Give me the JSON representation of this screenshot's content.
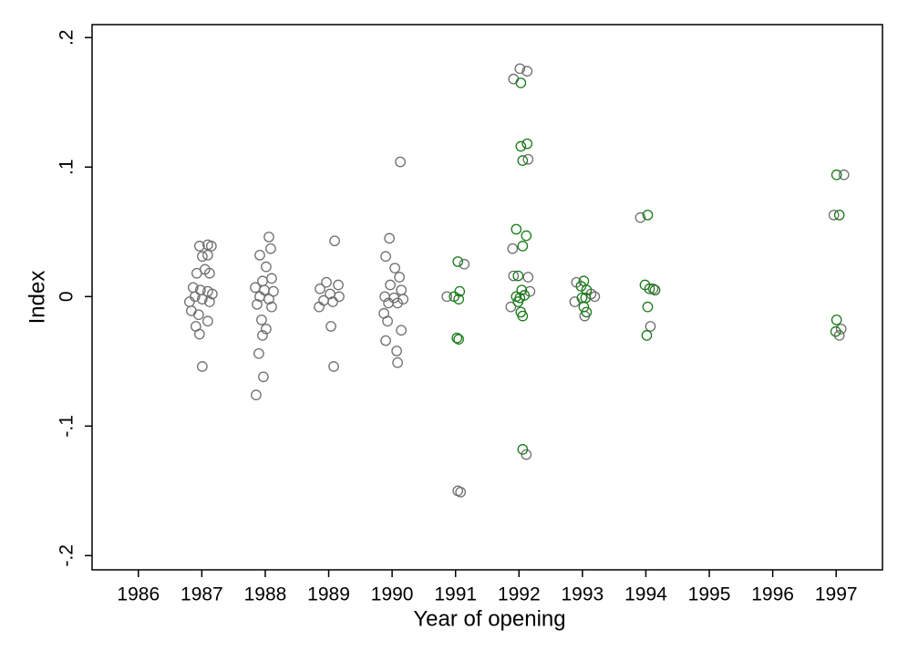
{
  "chart_data": {
    "type": "scatter",
    "x_label": "Year of opening",
    "y_label": "Index",
    "xlim": [
      1985.27,
      1997.73
    ],
    "ylim": [
      -0.211,
      0.21
    ],
    "xticks": [
      1986,
      1987,
      1988,
      1989,
      1990,
      1991,
      1992,
      1993,
      1994,
      1995,
      1996,
      1997
    ],
    "yticks": [
      {
        "value": -0.2,
        "label": "-.2"
      },
      {
        "value": -0.1,
        "label": "-.1"
      },
      0,
      {
        "value": 0.1,
        "label": ".1"
      },
      {
        "value": 0.2,
        "label": ".2"
      }
    ],
    "series": [
      {
        "color": "#6e6e6e",
        "x": [
          1986.964,
          1987.094,
          1987.151,
          1987.007,
          1987.094,
          1986.921,
          1987.05,
          1987.122,
          1986.863,
          1986.978,
          1987.094,
          1986.892,
          1987.007,
          1987.122,
          1986.835,
          1986.95,
          1987.094,
          1986.906,
          1986.964,
          1987.007,
          1987.165,
          1986.806,
          1988.058,
          1987.914,
          1988.086,
          1988.014,
          1987.957,
          1988.101,
          1987.842,
          1987.986,
          1988.129,
          1987.914,
          1988.058,
          1987.871,
          1988.101,
          1987.942,
          1988.014,
          1987.957,
          1987.899,
          1987.971,
          1987.856,
          1989.094,
          1988.964,
          1989.151,
          1988.863,
          1989.022,
          1989.165,
          1988.921,
          1989.065,
          1988.849,
          1989.036,
          1989.079,
          1990.129,
          1989.957,
          1989.899,
          1990.043,
          1990.115,
          1989.971,
          1990.144,
          1989.885,
          1990.029,
          1990.173,
          1989.942,
          1990.086,
          1989.871,
          1989.928,
          1990.144,
          1989.899,
          1990.072,
          1990.086,
          1990.863,
          1991.137,
          1991.036,
          1991.079,
          1991.914,
          1992.129,
          1991.899,
          1991.914,
          1992.144,
          1992.173,
          1991.871,
          1992.115,
          1992.014,
          1992.144,
          1992.906,
          1993.137,
          1992.878,
          1993.194,
          1993.036,
          1993.914,
          1994.115,
          1994.072,
          1997.122,
          1996.964,
          1997.079,
          1997.05
        ],
        "values": [
          0.039,
          0.04,
          0.039,
          0.031,
          0.032,
          0.018,
          0.021,
          0.018,
          0.007,
          0.005,
          0.004,
          0,
          -0.002,
          -0.004,
          -0.011,
          -0.014,
          -0.019,
          -0.023,
          -0.029,
          -0.054,
          0.002,
          -0.004,
          0.046,
          0.032,
          0.037,
          0.023,
          0.012,
          0.014,
          0.007,
          0.005,
          0.004,
          0,
          -0.002,
          -0.006,
          -0.008,
          -0.018,
          -0.025,
          -0.03,
          -0.044,
          -0.062,
          -0.076,
          0.043,
          0.011,
          0.009,
          0.006,
          0.002,
          0,
          -0.003,
          -0.004,
          -0.008,
          -0.023,
          -0.054,
          0.104,
          0.045,
          0.031,
          0.022,
          0.015,
          0.009,
          0.005,
          0,
          -0.001,
          -0.002,
          -0.005,
          -0.005,
          -0.013,
          -0.019,
          -0.026,
          -0.034,
          -0.042,
          -0.051,
          0,
          0.025,
          -0.15,
          -0.151,
          0.168,
          0.174,
          0.037,
          0.016,
          0.015,
          0.004,
          -0.008,
          -0.122,
          0.176,
          0.106,
          0.011,
          0.002,
          -0.004,
          0,
          -0.015,
          0.061,
          0.006,
          -0.023,
          0.094,
          0.063,
          -0.025,
          -0.03
        ]
      },
      {
        "color": "#1a7a1a",
        "x": [
          1991.036,
          1990.978,
          1991.065,
          1991.05,
          1991.022,
          1991.05,
          1992.029,
          1992.029,
          1992.129,
          1992.058,
          1991.957,
          1992.115,
          1992.058,
          1991.986,
          1992.043,
          1991.957,
          1992.014,
          1992.086,
          1991.986,
          1992.029,
          1992.058,
          1992.058,
          1993.022,
          1992.978,
          1993.065,
          1992.993,
          1993.05,
          1993.022,
          1993.065,
          1994.029,
          1993.986,
          1994.058,
          1994.029,
          1994.014,
          1994.144,
          1997.007,
          1997.05,
          1997.007,
          1996.993
        ],
        "values": [
          0.027,
          0,
          0.004,
          -0.002,
          -0.032,
          -0.033,
          0.165,
          0.116,
          0.118,
          0.105,
          0.052,
          0.047,
          0.039,
          0.016,
          0.005,
          0,
          -0.001,
          0.001,
          -0.004,
          -0.012,
          -0.015,
          -0.118,
          0.012,
          0.008,
          0.005,
          -0.001,
          -0.001,
          -0.008,
          -0.012,
          0.063,
          0.009,
          0.006,
          -0.008,
          -0.03,
          0.005,
          0.094,
          0.063,
          -0.018,
          -0.027
        ]
      }
    ]
  }
}
